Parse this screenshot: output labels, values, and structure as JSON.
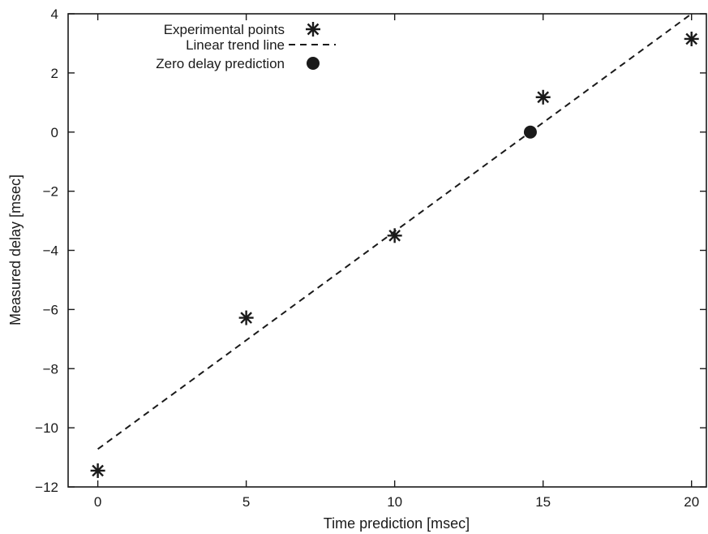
{
  "chart_data": {
    "type": "scatter",
    "xlabel": "Time prediction [msec]",
    "ylabel": "Measured delay [msec]",
    "xlim": [
      -1,
      20.5
    ],
    "ylim": [
      -12,
      4
    ],
    "x_ticks": [
      0,
      5,
      10,
      15,
      20
    ],
    "y_ticks": [
      -12,
      -10,
      -8,
      -6,
      -4,
      -2,
      0,
      2,
      4
    ],
    "x_tick_labels": [
      "0",
      "5",
      "10",
      "15",
      "20"
    ],
    "y_tick_labels": [
      "−12",
      "−10",
      "−8",
      "−6",
      "−4",
      "−2",
      "0",
      "2",
      "4"
    ],
    "grid": false,
    "legend_position": "top-left",
    "series": [
      {
        "name": "Experimental points",
        "kind": "markers",
        "marker": "asterisk",
        "x": [
          0,
          5,
          10,
          15,
          20
        ],
        "y": [
          -11.45,
          -6.28,
          -3.5,
          1.18,
          3.15
        ]
      },
      {
        "name": "Linear trend line",
        "kind": "line",
        "style": "dashed",
        "x": [
          0,
          20
        ],
        "y": [
          -10.72,
          4.0
        ]
      },
      {
        "name": "Zero delay prediction",
        "kind": "markers",
        "marker": "filled-circle",
        "x": [
          14.57
        ],
        "y": [
          0
        ]
      }
    ],
    "colors": {
      "ink": "#1a1a1a",
      "background": "#ffffff"
    }
  }
}
